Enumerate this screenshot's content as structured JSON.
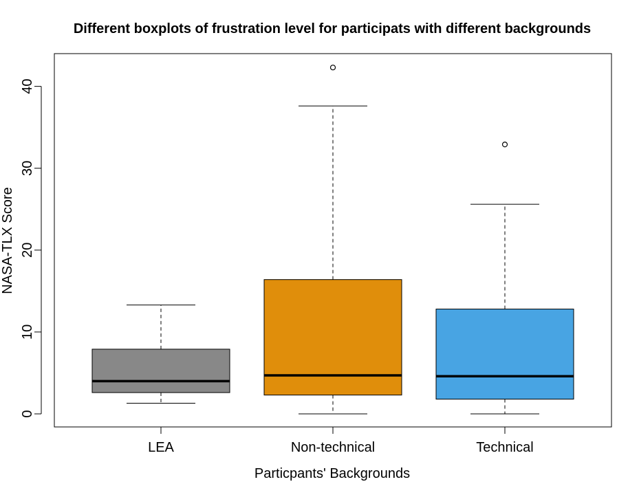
{
  "chart_data": {
    "type": "boxplot",
    "title": "Different boxplots of frustration level for participats with different backgrounds",
    "xlabel": "Particpants' Backgrounds",
    "ylabel": "NASA-TLX Score",
    "ylim": [
      0,
      43
    ],
    "yticks": [
      0,
      10,
      20,
      30,
      40
    ],
    "categories": [
      "LEA",
      "Non-technical",
      "Technical"
    ],
    "boxes": [
      {
        "name": "LEA",
        "color": "#888888",
        "whisker_low": 1.3,
        "q1": 2.6,
        "median": 4.0,
        "q3": 7.9,
        "whisker_high": 13.3,
        "outliers": []
      },
      {
        "name": "Non-technical",
        "color": "#E08E0B",
        "whisker_low": 0.0,
        "q1": 2.3,
        "median": 4.7,
        "q3": 16.4,
        "whisker_high": 37.6,
        "outliers": [
          42.3
        ]
      },
      {
        "name": "Technical",
        "color": "#48A4E3",
        "whisker_low": 0.0,
        "q1": 1.8,
        "median": 4.6,
        "q3": 12.8,
        "whisker_high": 25.6,
        "outliers": [
          32.9
        ]
      }
    ],
    "grid": false,
    "legend": "none"
  }
}
